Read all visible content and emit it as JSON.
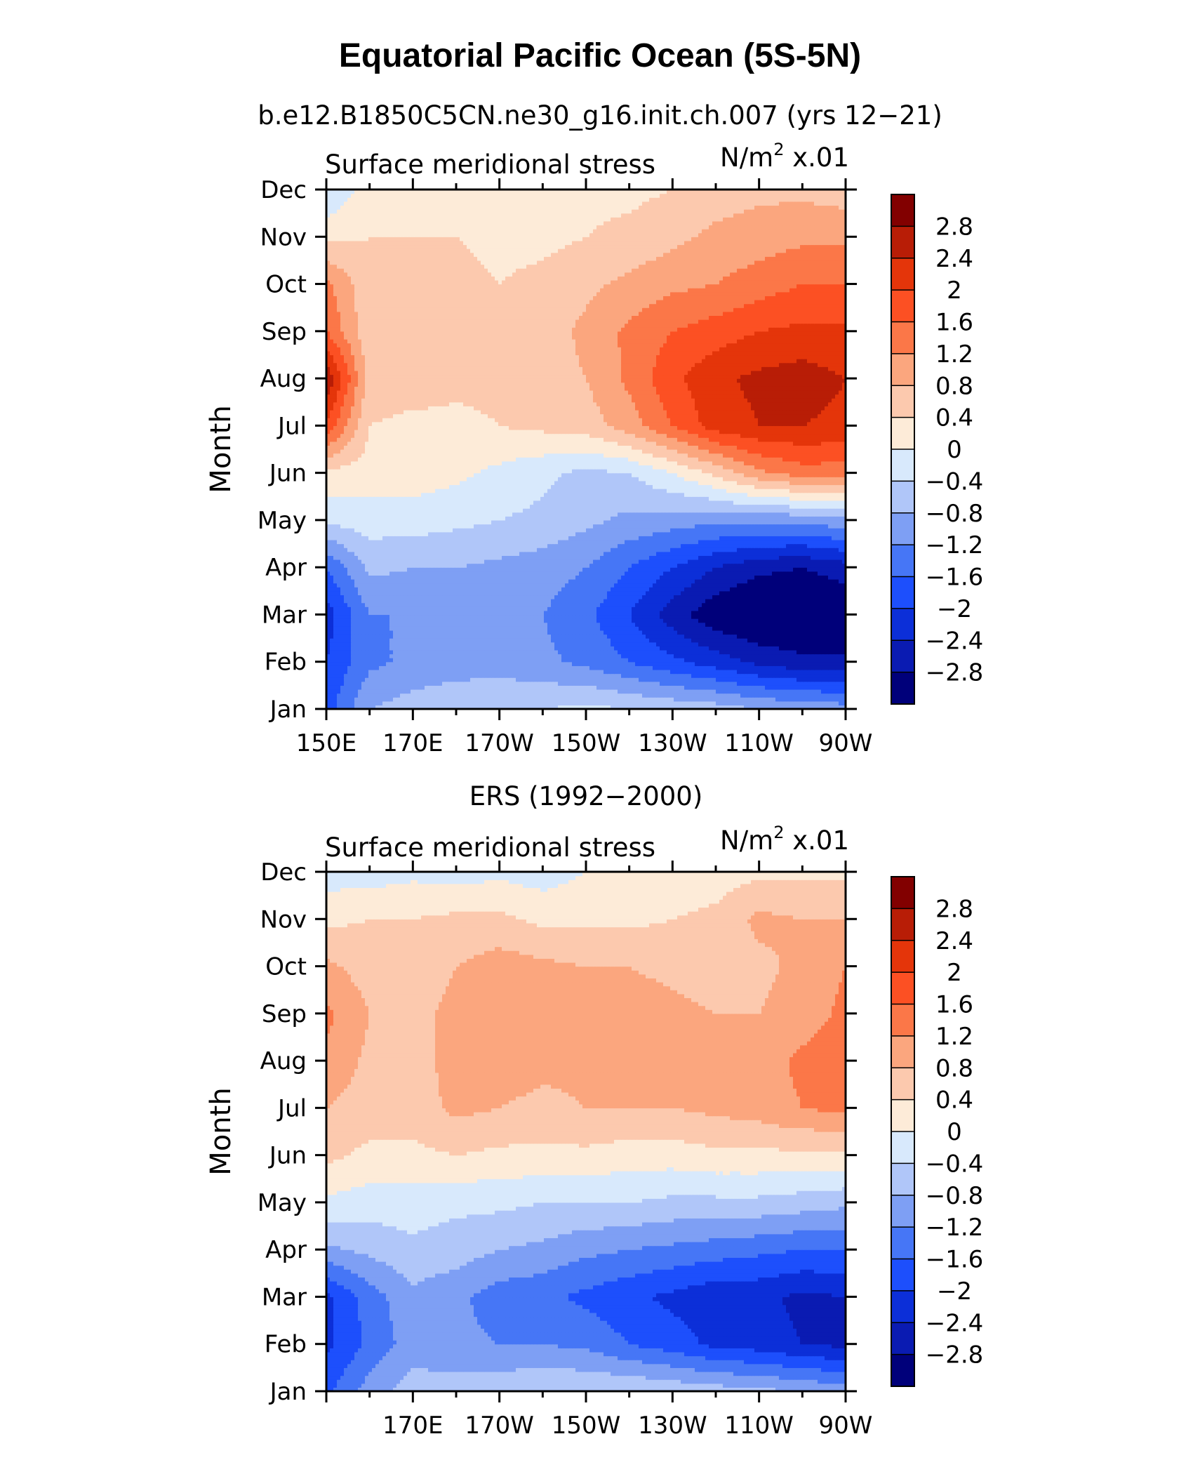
{
  "title": "Equatorial Pacific Ocean (5S-5N)",
  "colorbar": {
    "colors": [
      "#00007a",
      "#0a1bb2",
      "#0c2fd8",
      "#1d4ffc",
      "#4676f6",
      "#7e9ff4",
      "#b0c6f9",
      "#d8e9fc",
      "#fdebd8",
      "#fcc9ae",
      "#fba67e",
      "#fb7748",
      "#fc5023",
      "#e4350a",
      "#b81d06",
      "#820000"
    ],
    "labels": [
      "−2.8",
      "−2.4",
      "−2",
      "−1.6",
      "−1.2",
      "−0.8",
      "−0.4",
      "0",
      "0.4",
      "0.8",
      "1.2",
      "1.6",
      "2",
      "2.4",
      "2.8"
    ]
  },
  "panels": [
    {
      "subtitle": "b.e12.B1850C5CN.ne30_g16.init.ch.007 (yrs 12−21)",
      "left_label": "Surface meridional stress",
      "units": "N/m",
      "units_sup": "2",
      "units_suffix": " x.01",
      "ylabel": "Month",
      "months": [
        "Jan",
        "Feb",
        "Mar",
        "Apr",
        "May",
        "Jun",
        "Jul",
        "Aug",
        "Sep",
        "Oct",
        "Nov",
        "Dec"
      ],
      "xticks": [
        "150E",
        "170E",
        "170W",
        "150W",
        "130W",
        "110W",
        "90W"
      ]
    },
    {
      "subtitle": "ERS (1992−2000)",
      "left_label": "Surface meridional stress",
      "units": "N/m",
      "units_sup": "2",
      "units_suffix": " x.01",
      "ylabel": "Month",
      "months": [
        "Jan",
        "Feb",
        "Mar",
        "Apr",
        "May",
        "Jun",
        "Jul",
        "Aug",
        "Sep",
        "Oct",
        "Nov",
        "Dec"
      ],
      "xticks": [
        "",
        "170E",
        "170W",
        "150W",
        "130W",
        "110W",
        "90W"
      ]
    }
  ],
  "chart_data": [
    {
      "type": "heatmap",
      "title": "Equatorial Pacific Ocean (5S-5N)",
      "subtitle": "b.e12.B1850C5CN.ne30_g16.init.ch.007 (yrs 12−21)",
      "variable": "Surface meridional stress",
      "units": "N/m2 x.01",
      "xlabel": "",
      "ylabel": "Month",
      "x": [
        150,
        160,
        170,
        180,
        190,
        200,
        210,
        220,
        230,
        240,
        250,
        260,
        270
      ],
      "y": [
        "Jan",
        "Feb",
        "Mar",
        "Apr",
        "May",
        "Jun",
        "Jul",
        "Aug",
        "Sep",
        "Oct",
        "Nov",
        "Dec"
      ],
      "z": [
        [
          -1.8,
          -0.8,
          -0.6,
          -0.5,
          -0.4,
          -0.4,
          -0.3,
          -0.4,
          -0.5,
          -0.6,
          -0.8,
          -0.9,
          -1.0
        ],
        [
          -2.0,
          -1.3,
          -1.1,
          -1.0,
          -1.0,
          -1.1,
          -1.3,
          -1.6,
          -1.9,
          -2.2,
          -2.5,
          -2.7,
          -2.7
        ],
        [
          -2.2,
          -1.2,
          -1.2,
          -1.1,
          -1.1,
          -1.2,
          -1.5,
          -2.0,
          -2.6,
          -3.1,
          -3.3,
          -3.3,
          -3.2
        ],
        [
          -1.6,
          -0.7,
          -0.8,
          -0.8,
          -0.9,
          -1.0,
          -1.2,
          -1.6,
          -2.0,
          -2.4,
          -2.7,
          -2.8,
          -2.6
        ],
        [
          -0.3,
          -0.2,
          -0.2,
          -0.3,
          -0.4,
          -0.5,
          -0.7,
          -0.9,
          -1.0,
          -1.1,
          -1.1,
          -1.1,
          -0.9
        ],
        [
          0.3,
          0.2,
          0.2,
          0.1,
          -0.1,
          -0.3,
          -0.5,
          -0.4,
          0.0,
          0.5,
          1.1,
          1.4,
          1.4
        ],
        [
          1.9,
          0.4,
          0.3,
          0.3,
          0.4,
          0.5,
          0.6,
          1.0,
          1.6,
          2.2,
          2.4,
          2.4,
          2.3
        ],
        [
          2.8,
          0.6,
          0.6,
          0.5,
          0.5,
          0.6,
          0.8,
          1.3,
          1.9,
          2.3,
          2.5,
          2.6,
          2.4
        ],
        [
          1.6,
          0.5,
          0.5,
          0.5,
          0.5,
          0.6,
          0.9,
          1.3,
          1.6,
          1.8,
          2.0,
          2.1,
          2.1
        ],
        [
          1.3,
          0.5,
          0.5,
          0.5,
          0.4,
          0.5,
          0.7,
          0.9,
          1.1,
          1.2,
          1.4,
          1.6,
          1.6
        ],
        [
          0.3,
          0.4,
          0.4,
          0.4,
          0.3,
          0.3,
          0.4,
          0.5,
          0.7,
          0.9,
          1.0,
          1.1,
          1.1
        ],
        [
          -0.4,
          0.2,
          0.2,
          0.2,
          0.2,
          0.2,
          0.3,
          0.3,
          0.4,
          0.6,
          0.7,
          0.7,
          0.6
        ]
      ],
      "levels": [
        -2.8,
        -2.4,
        -2,
        -1.6,
        -1.2,
        -0.8,
        -0.4,
        0,
        0.4,
        0.8,
        1.2,
        1.6,
        2,
        2.4,
        2.8
      ],
      "xlim": [
        150,
        270
      ],
      "legend": "right"
    },
    {
      "type": "heatmap",
      "subtitle": "ERS (1992−2000)",
      "variable": "Surface meridional stress",
      "units": "N/m2 x.01",
      "xlabel": "",
      "ylabel": "Month",
      "x": [
        150,
        160,
        170,
        180,
        190,
        200,
        210,
        220,
        230,
        240,
        250,
        260,
        270
      ],
      "y": [
        "Jan",
        "Feb",
        "Mar",
        "Apr",
        "May",
        "Jun",
        "Jul",
        "Aug",
        "Sep",
        "Oct",
        "Nov",
        "Dec"
      ],
      "z": [
        [
          -1.7,
          -1.0,
          -0.6,
          -0.6,
          -0.5,
          -0.4,
          -0.4,
          -0.4,
          -0.5,
          -0.6,
          -0.7,
          -0.8,
          -1.0
        ],
        [
          -2.1,
          -1.5,
          -1.0,
          -1.1,
          -1.2,
          -1.2,
          -1.3,
          -1.6,
          -1.8,
          -2.1,
          -2.2,
          -2.4,
          -2.5
        ],
        [
          -2.1,
          -1.4,
          -0.9,
          -1.1,
          -1.4,
          -1.5,
          -1.7,
          -1.9,
          -2.1,
          -2.3,
          -2.3,
          -2.5,
          -2.4
        ],
        [
          -0.9,
          -0.7,
          -0.5,
          -0.6,
          -0.8,
          -0.9,
          -1.1,
          -1.2,
          -1.3,
          -1.4,
          -1.5,
          -1.6,
          -1.6
        ],
        [
          -0.1,
          -0.2,
          -0.2,
          -0.3,
          -0.3,
          -0.4,
          -0.4,
          -0.4,
          -0.5,
          -0.5,
          -0.5,
          -0.6,
          -0.7
        ],
        [
          0.5,
          0.3,
          0.3,
          0.4,
          0.3,
          0.3,
          0.3,
          0.2,
          0.2,
          0.3,
          0.3,
          0.3,
          0.3
        ],
        [
          0.8,
          0.6,
          0.6,
          0.9,
          0.8,
          0.7,
          0.8,
          0.8,
          0.8,
          0.9,
          1.0,
          1.2,
          1.3
        ],
        [
          1.1,
          0.7,
          0.7,
          0.9,
          1.0,
          0.9,
          0.9,
          1.0,
          0.9,
          0.9,
          1.0,
          1.3,
          1.4
        ],
        [
          1.3,
          0.8,
          0.7,
          0.9,
          1.1,
          1.0,
          1.0,
          1.0,
          0.9,
          0.8,
          0.8,
          1.0,
          1.3
        ],
        [
          0.9,
          0.6,
          0.6,
          0.8,
          1.0,
          0.9,
          0.8,
          0.8,
          0.7,
          0.6,
          0.7,
          0.9,
          1.2
        ],
        [
          0.3,
          0.4,
          0.4,
          0.5,
          0.5,
          0.3,
          0.3,
          0.3,
          0.4,
          0.5,
          0.9,
          0.8,
          0.8
        ],
        [
          -0.2,
          -0.2,
          -0.1,
          -0.2,
          -0.1,
          -0.2,
          0.0,
          0.0,
          0.1,
          0.2,
          0.3,
          0.3,
          0.3
        ]
      ],
      "levels": [
        -2.8,
        -2.4,
        -2,
        -1.6,
        -1.2,
        -0.8,
        -0.4,
        0,
        0.4,
        0.8,
        1.2,
        1.6,
        2,
        2.4,
        2.8
      ],
      "xlim": [
        150,
        270
      ],
      "legend": "right"
    }
  ]
}
